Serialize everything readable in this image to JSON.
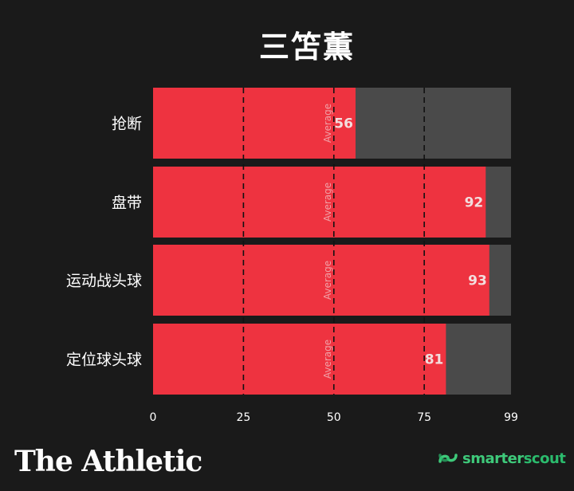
{
  "chart_data": {
    "type": "bar",
    "orientation": "horizontal",
    "title": "三笘薫",
    "categories": [
      "抢断",
      "盘带",
      "运动战头球",
      "定位球头球"
    ],
    "values": [
      56,
      92,
      93,
      81
    ],
    "xlim": [
      0,
      99
    ],
    "xticks": [
      0,
      25,
      50,
      75,
      99
    ],
    "reference_lines": [
      25,
      50,
      75
    ],
    "average_label": "Average",
    "colors": {
      "bar": "#ee3340",
      "track": "#4a4a4a",
      "background": "#1a1a1a",
      "gridline": "#111111"
    },
    "grid": false,
    "legend": "none"
  },
  "branding": {
    "left": "The Athletic",
    "right_part1": "smarter",
    "right_part2": "scout",
    "right_icon": "smarterscout-logo-icon"
  }
}
